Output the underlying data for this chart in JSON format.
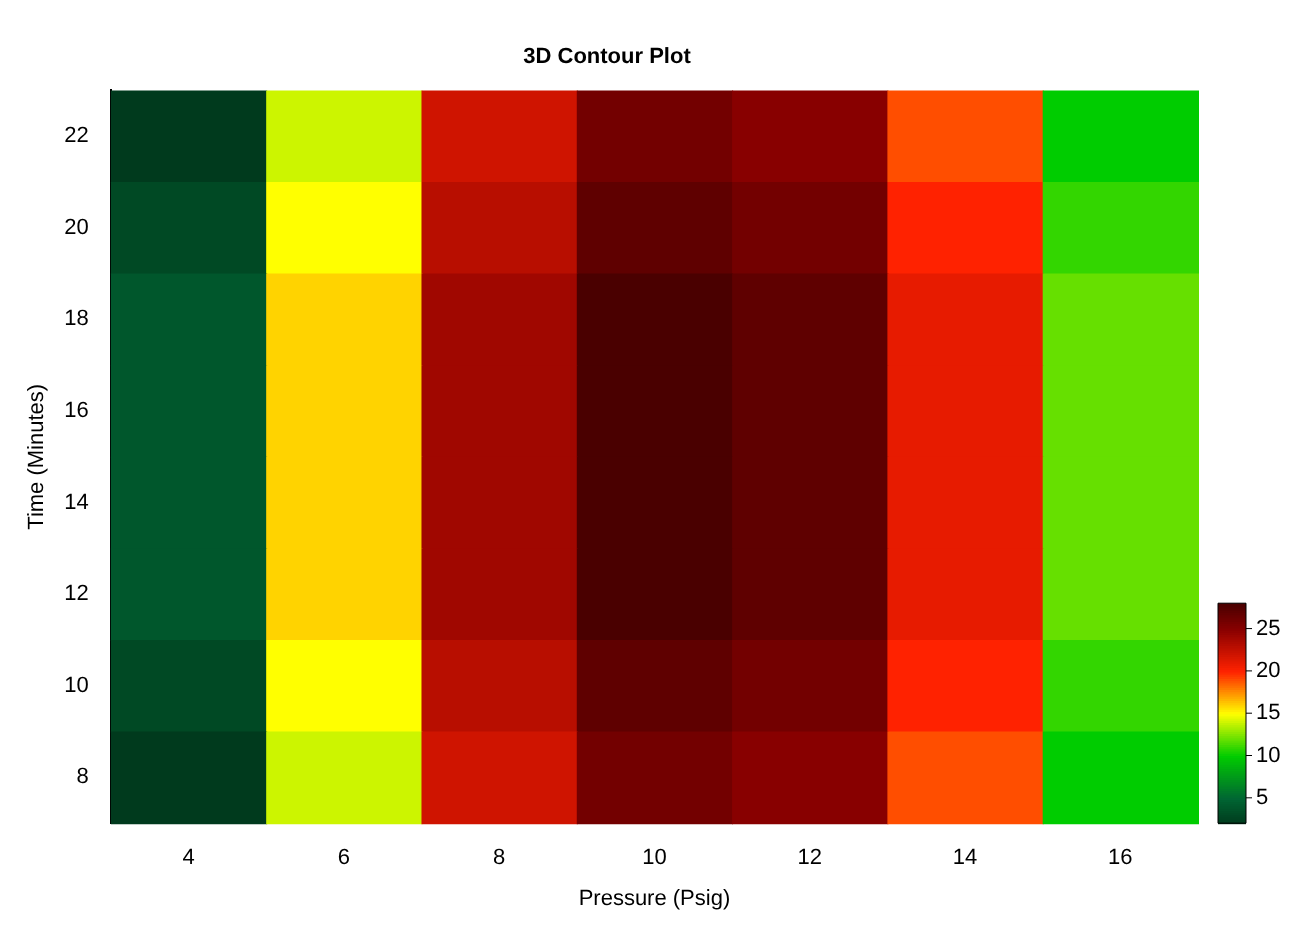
{
  "chart_data": {
    "type": "heatmap",
    "title": "3D Contour Plot",
    "xlabel": "Pressure (Psig)",
    "ylabel": "Time (Minutes)",
    "categories": [
      "4",
      "6",
      "8",
      "10",
      "12",
      "14",
      "16"
    ],
    "y_categories": [
      "22",
      "20",
      "18",
      "16",
      "14",
      "12",
      "10",
      "8"
    ],
    "cells": [
      [
        2,
        14,
        22,
        26,
        25,
        19,
        10
      ],
      [
        3,
        15,
        23,
        27,
        26,
        20,
        11
      ],
      [
        4,
        16,
        24,
        28,
        27,
        21,
        12
      ],
      [
        4,
        16,
        24,
        28,
        27,
        21,
        12
      ],
      [
        4,
        16,
        24,
        28,
        27,
        21,
        12
      ],
      [
        4,
        16,
        24,
        28,
        27,
        21,
        12
      ],
      [
        3,
        15,
        23,
        27,
        26,
        20,
        11
      ],
      [
        2,
        14,
        22,
        26,
        25,
        19,
        10
      ]
    ],
    "clim": [
      2,
      28
    ],
    "cticks": [
      5,
      10,
      15,
      20,
      25
    ],
    "colors": [
      "#003a1d",
      "#006633",
      "#00cc00",
      "#ffff00",
      "#ff2200",
      "#880000",
      "#4a0000"
    ]
  }
}
